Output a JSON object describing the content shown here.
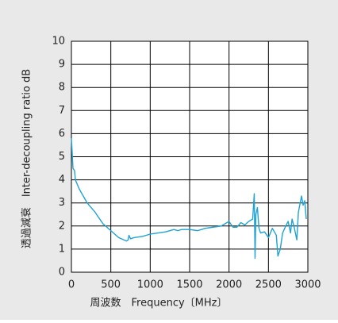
{
  "chart_data": {
    "type": "line",
    "y_label": "透過減衰　Inter-decoupling ratio  dB",
    "x_label": "周波数　Frequency〔MHz〕",
    "x": [
      0,
      20,
      40,
      50,
      100,
      200,
      300,
      400,
      500,
      600,
      700,
      720,
      730,
      750,
      800,
      900,
      1000,
      1100,
      1200,
      1300,
      1350,
      1400,
      1500,
      1600,
      1700,
      1800,
      1900,
      1950,
      2000,
      2050,
      2100,
      2150,
      2200,
      2250,
      2300,
      2320,
      2330,
      2340,
      2360,
      2380,
      2400,
      2450,
      2500,
      2550,
      2600,
      2620,
      2650,
      2680,
      2720,
      2750,
      2780,
      2800,
      2830,
      2860,
      2880,
      2920,
      2940,
      2960,
      2980
    ],
    "series": [
      {
        "color": "#1ea3d4",
        "values": [
          5.8,
          4.5,
          4.4,
          4.0,
          3.6,
          3.0,
          2.6,
          2.1,
          1.8,
          1.5,
          1.35,
          1.4,
          1.6,
          1.45,
          1.5,
          1.55,
          1.65,
          1.7,
          1.75,
          1.85,
          1.8,
          1.85,
          1.85,
          1.8,
          1.9,
          1.95,
          2.0,
          2.1,
          2.2,
          1.95,
          1.95,
          2.15,
          2.05,
          2.2,
          2.3,
          3.4,
          0.6,
          2.5,
          2.8,
          1.9,
          1.7,
          1.75,
          1.5,
          1.9,
          1.6,
          0.7,
          1.0,
          1.7,
          2.0,
          2.2,
          1.7,
          2.3,
          1.9,
          1.4,
          2.6,
          3.3,
          2.9,
          3.1,
          2.3
        ]
      }
    ],
    "xlim": [
      0,
      3000
    ],
    "xticks": [
      0,
      500,
      1000,
      1500,
      2000,
      2500,
      3000
    ],
    "ylim": [
      0,
      10
    ],
    "yticks": [
      0,
      1,
      2,
      3,
      4,
      5,
      6,
      7,
      8,
      9,
      10
    ],
    "grid": true
  }
}
